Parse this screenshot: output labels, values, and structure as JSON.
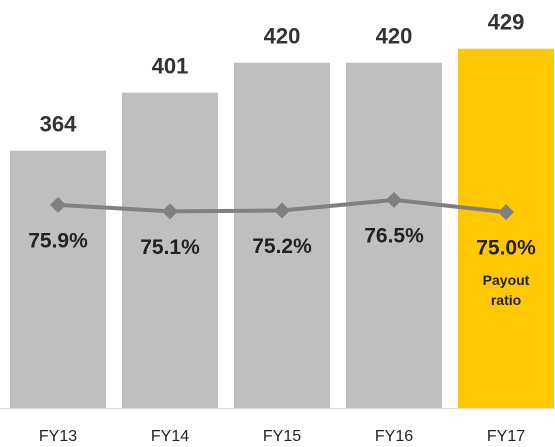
{
  "chart_data": {
    "type": "bar",
    "categories": [
      "FY13",
      "FY14",
      "FY15",
      "FY16",
      "FY17"
    ],
    "ylim": [
      200,
      460
    ],
    "y2lim": [
      51,
      101
    ],
    "series": [
      {
        "type": "bar",
        "values": [
          364,
          401,
          420,
          420,
          429
        ],
        "colors": [
          "#bfbfbf",
          "#bfbfbf",
          "#bfbfbf",
          "#bfbfbf",
          "#ffc800"
        ]
      },
      {
        "type": "line",
        "name": "Payout ratio",
        "axis": "y2",
        "color": "#808080",
        "values": [
          75.9,
          75.1,
          75.2,
          76.5,
          75.0
        ],
        "value_labels": [
          "75.9%",
          "75.1%",
          "75.2%",
          "76.5%",
          "75.0%"
        ]
      }
    ]
  }
}
